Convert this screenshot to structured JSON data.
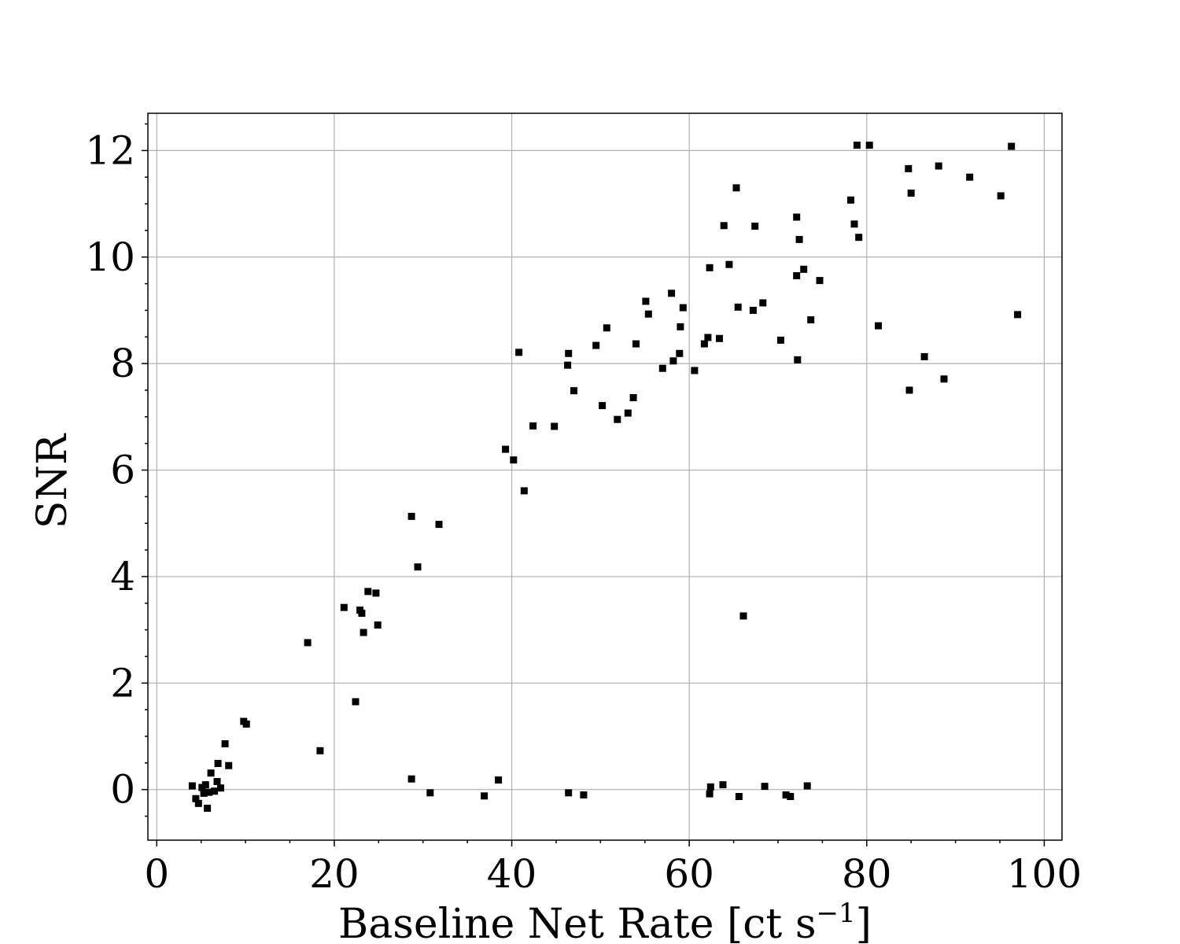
{
  "chart_data": {
    "type": "scatter",
    "xlabel": "Baseline Net Rate [ct s",
    "xlabel_superscript": "−1",
    "xlabel_suffix": "]",
    "ylabel": "SNR",
    "xlim": [
      -1,
      102
    ],
    "ylim": [
      -0.95,
      12.7
    ],
    "grid": true,
    "x_ticks": [
      0,
      20,
      40,
      60,
      80,
      100
    ],
    "y_ticks": [
      0,
      2,
      4,
      6,
      8,
      10,
      12
    ],
    "x_tick_labels": [
      "0",
      "20",
      "40",
      "60",
      "80",
      "100"
    ],
    "y_tick_labels": [
      "0",
      "2",
      "4",
      "6",
      "8",
      "10",
      "12"
    ],
    "marker": "square",
    "color": "#000000",
    "series": [
      {
        "points": [
          [
            4.0,
            0.07
          ],
          [
            4.4,
            -0.17
          ],
          [
            4.7,
            -0.26
          ],
          [
            5.1,
            0.04
          ],
          [
            5.3,
            -0.07
          ],
          [
            5.5,
            0.09
          ],
          [
            5.7,
            -0.35
          ],
          [
            5.9,
            -0.05
          ],
          [
            6.1,
            0.31
          ],
          [
            6.5,
            -0.03
          ],
          [
            6.8,
            0.15
          ],
          [
            6.9,
            0.49
          ],
          [
            7.2,
            0.03
          ],
          [
            7.7,
            0.86
          ],
          [
            8.1,
            0.45
          ],
          [
            9.8,
            1.28
          ],
          [
            10.1,
            1.23
          ],
          [
            17.0,
            2.76
          ],
          [
            18.4,
            0.73
          ],
          [
            21.1,
            3.42
          ],
          [
            22.4,
            1.65
          ],
          [
            22.9,
            3.37
          ],
          [
            23.1,
            3.31
          ],
          [
            23.3,
            2.95
          ],
          [
            23.8,
            3.72
          ],
          [
            24.7,
            3.69
          ],
          [
            24.9,
            3.09
          ],
          [
            28.7,
            5.13
          ],
          [
            28.7,
            0.2
          ],
          [
            29.4,
            4.18
          ],
          [
            30.8,
            -0.06
          ],
          [
            31.8,
            4.98
          ],
          [
            36.9,
            -0.12
          ],
          [
            38.5,
            0.18
          ],
          [
            39.3,
            6.39
          ],
          [
            40.2,
            6.19
          ],
          [
            40.8,
            8.21
          ],
          [
            41.4,
            5.61
          ],
          [
            42.4,
            6.83
          ],
          [
            44.8,
            6.82
          ],
          [
            46.3,
            7.97
          ],
          [
            46.4,
            8.19
          ],
          [
            46.4,
            -0.06
          ],
          [
            47.0,
            7.49
          ],
          [
            48.1,
            -0.1
          ],
          [
            49.5,
            8.34
          ],
          [
            50.2,
            7.21
          ],
          [
            50.7,
            8.67
          ],
          [
            51.9,
            6.95
          ],
          [
            53.1,
            7.07
          ],
          [
            53.7,
            7.36
          ],
          [
            54.0,
            8.37
          ],
          [
            55.1,
            9.17
          ],
          [
            55.4,
            8.93
          ],
          [
            57.0,
            7.91
          ],
          [
            58.0,
            9.32
          ],
          [
            58.2,
            8.05
          ],
          [
            58.9,
            8.19
          ],
          [
            59.0,
            8.69
          ],
          [
            59.3,
            9.05
          ],
          [
            60.6,
            7.87
          ],
          [
            61.7,
            8.37
          ],
          [
            62.1,
            8.49
          ],
          [
            62.3,
            9.8
          ],
          [
            62.3,
            -0.08
          ],
          [
            62.4,
            0.05
          ],
          [
            63.4,
            8.47
          ],
          [
            63.9,
            10.59
          ],
          [
            63.8,
            0.09
          ],
          [
            64.5,
            9.86
          ],
          [
            65.3,
            11.3
          ],
          [
            65.5,
            9.06
          ],
          [
            65.6,
            -0.13
          ],
          [
            66.1,
            3.26
          ],
          [
            67.2,
            9.0
          ],
          [
            67.4,
            10.58
          ],
          [
            68.3,
            9.14
          ],
          [
            68.5,
            0.06
          ],
          [
            70.3,
            8.44
          ],
          [
            70.9,
            -0.1
          ],
          [
            71.4,
            -0.13
          ],
          [
            72.1,
            10.75
          ],
          [
            72.1,
            9.65
          ],
          [
            72.2,
            8.07
          ],
          [
            72.4,
            10.33
          ],
          [
            72.9,
            9.77
          ],
          [
            73.3,
            0.07
          ],
          [
            73.7,
            8.82
          ],
          [
            74.7,
            9.56
          ],
          [
            78.2,
            11.07
          ],
          [
            78.6,
            10.62
          ],
          [
            78.9,
            12.1
          ],
          [
            79.1,
            10.37
          ],
          [
            80.3,
            12.1
          ],
          [
            81.3,
            8.71
          ],
          [
            84.7,
            11.66
          ],
          [
            84.8,
            7.5
          ],
          [
            85.0,
            11.2
          ],
          [
            86.5,
            8.13
          ],
          [
            88.1,
            11.71
          ],
          [
            88.7,
            7.71
          ],
          [
            91.6,
            11.5
          ],
          [
            95.1,
            11.15
          ],
          [
            96.3,
            12.08
          ],
          [
            97.0,
            8.92
          ]
        ]
      }
    ]
  }
}
